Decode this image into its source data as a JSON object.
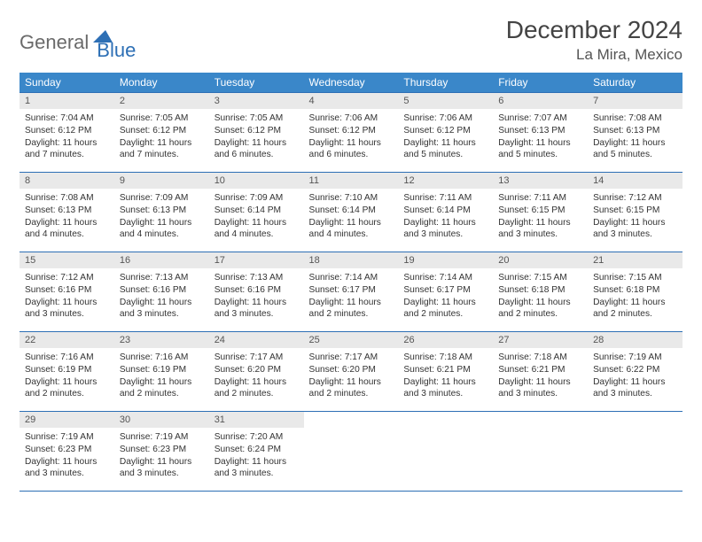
{
  "logo": {
    "part1": "General",
    "part2": "Blue"
  },
  "title": "December 2024",
  "location": "La Mira, Mexico",
  "colors": {
    "header_bg": "#3a87c9",
    "header_border": "#2d6fb5",
    "daynum_bg": "#e9e9e9",
    "text": "#333333",
    "logo_gray": "#6a6a6a",
    "logo_blue": "#2d6fb5"
  },
  "weekdays": [
    "Sunday",
    "Monday",
    "Tuesday",
    "Wednesday",
    "Thursday",
    "Friday",
    "Saturday"
  ],
  "weeks": [
    [
      {
        "num": "1",
        "sunrise": "Sunrise: 7:04 AM",
        "sunset": "Sunset: 6:12 PM",
        "daylight": "Daylight: 11 hours and 7 minutes."
      },
      {
        "num": "2",
        "sunrise": "Sunrise: 7:05 AM",
        "sunset": "Sunset: 6:12 PM",
        "daylight": "Daylight: 11 hours and 7 minutes."
      },
      {
        "num": "3",
        "sunrise": "Sunrise: 7:05 AM",
        "sunset": "Sunset: 6:12 PM",
        "daylight": "Daylight: 11 hours and 6 minutes."
      },
      {
        "num": "4",
        "sunrise": "Sunrise: 7:06 AM",
        "sunset": "Sunset: 6:12 PM",
        "daylight": "Daylight: 11 hours and 6 minutes."
      },
      {
        "num": "5",
        "sunrise": "Sunrise: 7:06 AM",
        "sunset": "Sunset: 6:12 PM",
        "daylight": "Daylight: 11 hours and 5 minutes."
      },
      {
        "num": "6",
        "sunrise": "Sunrise: 7:07 AM",
        "sunset": "Sunset: 6:13 PM",
        "daylight": "Daylight: 11 hours and 5 minutes."
      },
      {
        "num": "7",
        "sunrise": "Sunrise: 7:08 AM",
        "sunset": "Sunset: 6:13 PM",
        "daylight": "Daylight: 11 hours and 5 minutes."
      }
    ],
    [
      {
        "num": "8",
        "sunrise": "Sunrise: 7:08 AM",
        "sunset": "Sunset: 6:13 PM",
        "daylight": "Daylight: 11 hours and 4 minutes."
      },
      {
        "num": "9",
        "sunrise": "Sunrise: 7:09 AM",
        "sunset": "Sunset: 6:13 PM",
        "daylight": "Daylight: 11 hours and 4 minutes."
      },
      {
        "num": "10",
        "sunrise": "Sunrise: 7:09 AM",
        "sunset": "Sunset: 6:14 PM",
        "daylight": "Daylight: 11 hours and 4 minutes."
      },
      {
        "num": "11",
        "sunrise": "Sunrise: 7:10 AM",
        "sunset": "Sunset: 6:14 PM",
        "daylight": "Daylight: 11 hours and 4 minutes."
      },
      {
        "num": "12",
        "sunrise": "Sunrise: 7:11 AM",
        "sunset": "Sunset: 6:14 PM",
        "daylight": "Daylight: 11 hours and 3 minutes."
      },
      {
        "num": "13",
        "sunrise": "Sunrise: 7:11 AM",
        "sunset": "Sunset: 6:15 PM",
        "daylight": "Daylight: 11 hours and 3 minutes."
      },
      {
        "num": "14",
        "sunrise": "Sunrise: 7:12 AM",
        "sunset": "Sunset: 6:15 PM",
        "daylight": "Daylight: 11 hours and 3 minutes."
      }
    ],
    [
      {
        "num": "15",
        "sunrise": "Sunrise: 7:12 AM",
        "sunset": "Sunset: 6:16 PM",
        "daylight": "Daylight: 11 hours and 3 minutes."
      },
      {
        "num": "16",
        "sunrise": "Sunrise: 7:13 AM",
        "sunset": "Sunset: 6:16 PM",
        "daylight": "Daylight: 11 hours and 3 minutes."
      },
      {
        "num": "17",
        "sunrise": "Sunrise: 7:13 AM",
        "sunset": "Sunset: 6:16 PM",
        "daylight": "Daylight: 11 hours and 3 minutes."
      },
      {
        "num": "18",
        "sunrise": "Sunrise: 7:14 AM",
        "sunset": "Sunset: 6:17 PM",
        "daylight": "Daylight: 11 hours and 2 minutes."
      },
      {
        "num": "19",
        "sunrise": "Sunrise: 7:14 AM",
        "sunset": "Sunset: 6:17 PM",
        "daylight": "Daylight: 11 hours and 2 minutes."
      },
      {
        "num": "20",
        "sunrise": "Sunrise: 7:15 AM",
        "sunset": "Sunset: 6:18 PM",
        "daylight": "Daylight: 11 hours and 2 minutes."
      },
      {
        "num": "21",
        "sunrise": "Sunrise: 7:15 AM",
        "sunset": "Sunset: 6:18 PM",
        "daylight": "Daylight: 11 hours and 2 minutes."
      }
    ],
    [
      {
        "num": "22",
        "sunrise": "Sunrise: 7:16 AM",
        "sunset": "Sunset: 6:19 PM",
        "daylight": "Daylight: 11 hours and 2 minutes."
      },
      {
        "num": "23",
        "sunrise": "Sunrise: 7:16 AM",
        "sunset": "Sunset: 6:19 PM",
        "daylight": "Daylight: 11 hours and 2 minutes."
      },
      {
        "num": "24",
        "sunrise": "Sunrise: 7:17 AM",
        "sunset": "Sunset: 6:20 PM",
        "daylight": "Daylight: 11 hours and 2 minutes."
      },
      {
        "num": "25",
        "sunrise": "Sunrise: 7:17 AM",
        "sunset": "Sunset: 6:20 PM",
        "daylight": "Daylight: 11 hours and 2 minutes."
      },
      {
        "num": "26",
        "sunrise": "Sunrise: 7:18 AM",
        "sunset": "Sunset: 6:21 PM",
        "daylight": "Daylight: 11 hours and 3 minutes."
      },
      {
        "num": "27",
        "sunrise": "Sunrise: 7:18 AM",
        "sunset": "Sunset: 6:21 PM",
        "daylight": "Daylight: 11 hours and 3 minutes."
      },
      {
        "num": "28",
        "sunrise": "Sunrise: 7:19 AM",
        "sunset": "Sunset: 6:22 PM",
        "daylight": "Daylight: 11 hours and 3 minutes."
      }
    ],
    [
      {
        "num": "29",
        "sunrise": "Sunrise: 7:19 AM",
        "sunset": "Sunset: 6:23 PM",
        "daylight": "Daylight: 11 hours and 3 minutes."
      },
      {
        "num": "30",
        "sunrise": "Sunrise: 7:19 AM",
        "sunset": "Sunset: 6:23 PM",
        "daylight": "Daylight: 11 hours and 3 minutes."
      },
      {
        "num": "31",
        "sunrise": "Sunrise: 7:20 AM",
        "sunset": "Sunset: 6:24 PM",
        "daylight": "Daylight: 11 hours and 3 minutes."
      },
      null,
      null,
      null,
      null
    ]
  ]
}
